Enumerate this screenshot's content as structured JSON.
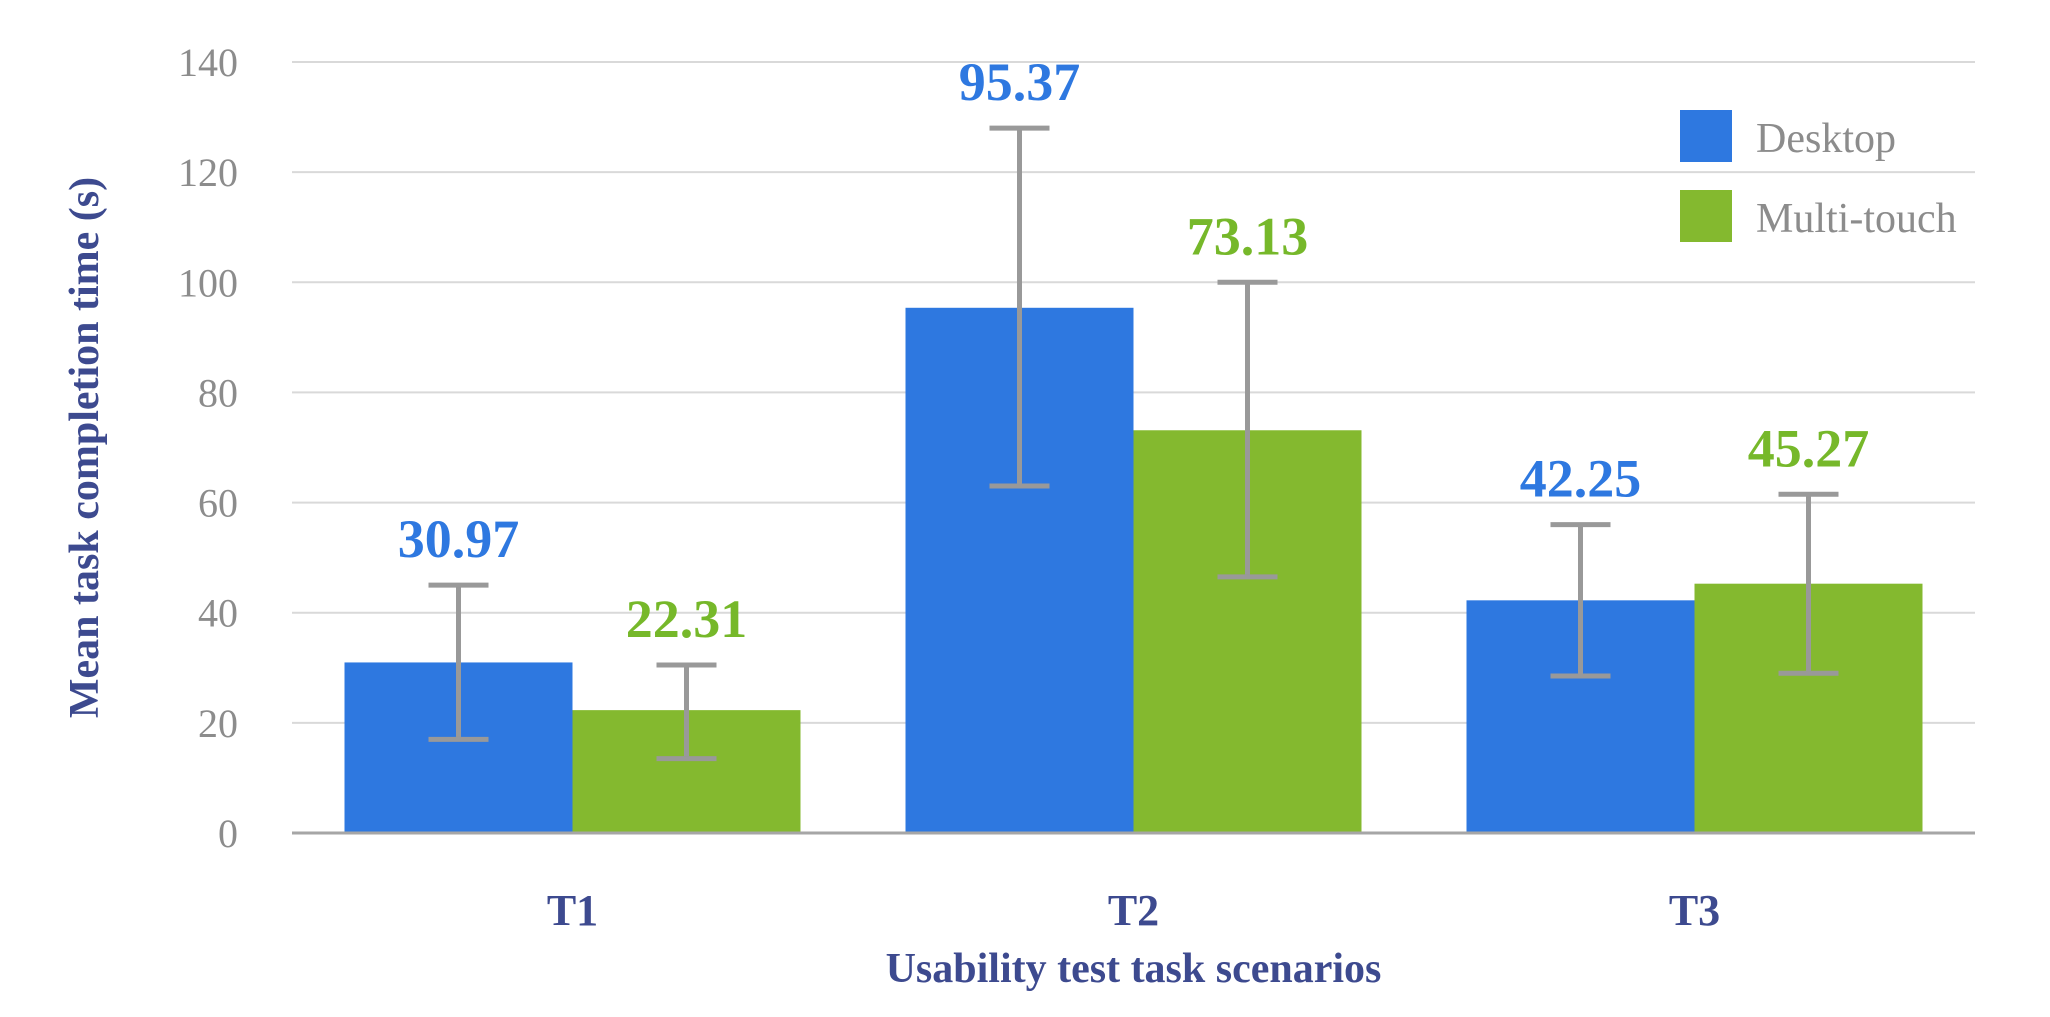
{
  "chart_data": {
    "type": "bar",
    "title": "",
    "xlabel": "Usability test task scenarios",
    "ylabel": "Mean task completion time (s)",
    "ylim": [
      0,
      140
    ],
    "yticks": [
      0,
      20,
      40,
      60,
      80,
      100,
      120,
      140
    ],
    "categories": [
      "T1",
      "T2",
      "T3"
    ],
    "grid": true,
    "legend_position": "top-right",
    "series": [
      {
        "name": "Desktop",
        "color": "#2e78e0",
        "label_color": "#2e78e0",
        "values": [
          30.97,
          95.37,
          42.25
        ],
        "labels": [
          "30.97",
          "95.37",
          "42.25"
        ],
        "error_low": [
          17,
          63,
          28.5
        ],
        "error_high": [
          45,
          128,
          56
        ]
      },
      {
        "name": "Multi-touch",
        "color": "#84b92f",
        "label_color": "#76b82a",
        "values": [
          22.31,
          73.13,
          45.27
        ],
        "labels": [
          "22.31",
          "73.13",
          "45.27"
        ],
        "error_low": [
          13.5,
          46.5,
          29
        ],
        "error_high": [
          30.5,
          100,
          61.5
        ]
      }
    ]
  }
}
